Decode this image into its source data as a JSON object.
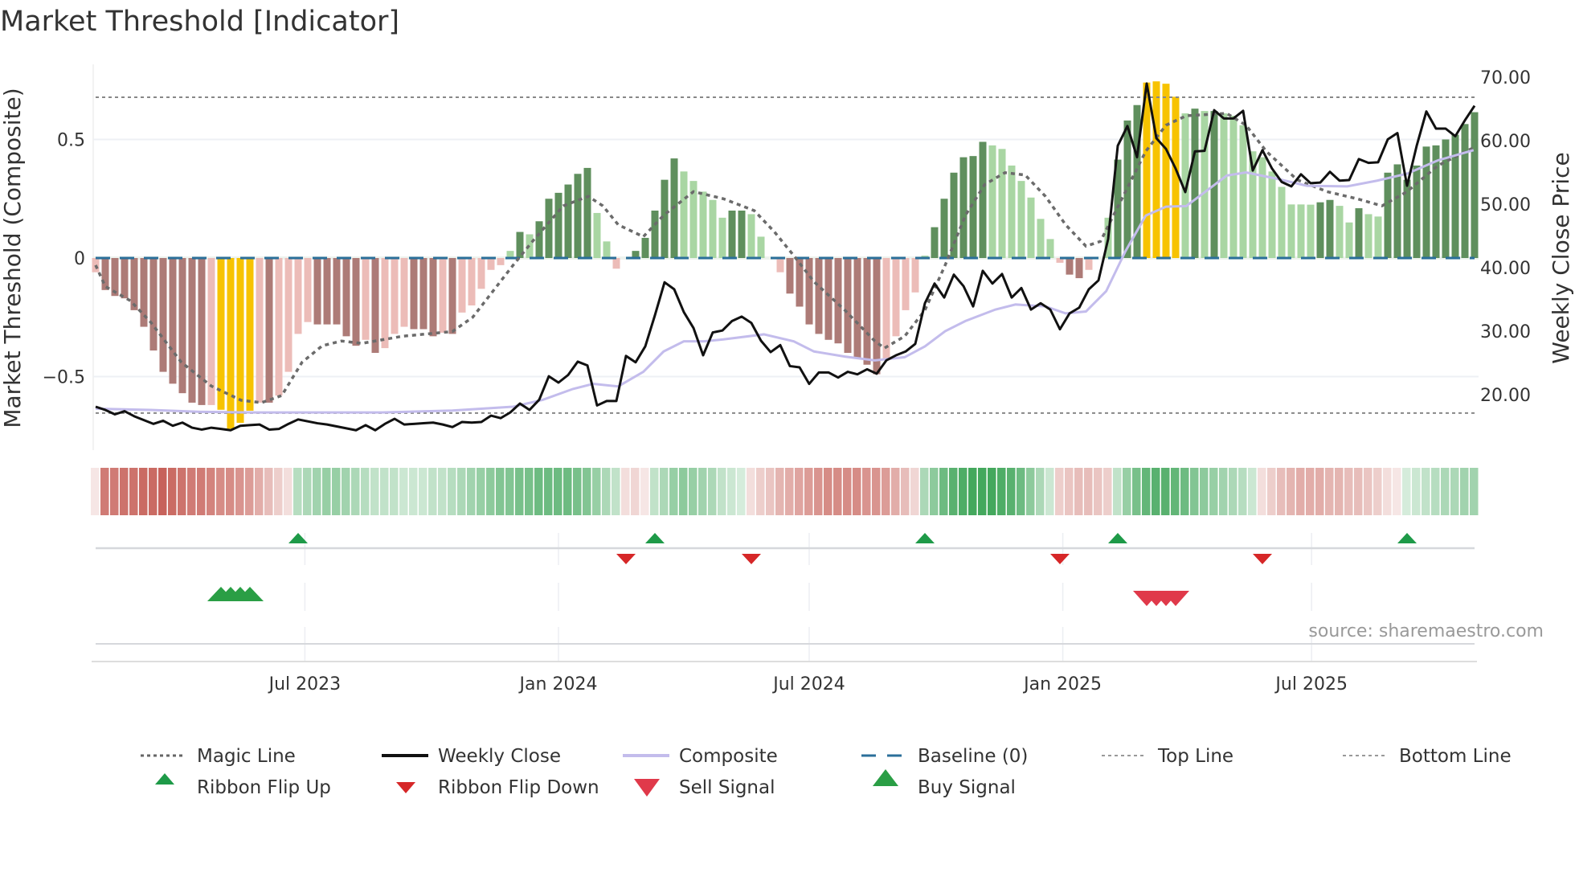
{
  "chart_data": {
    "type": "bar",
    "title": "Market Threshold [Indicator]",
    "ylabel_left": "Market Threshold (Composite)",
    "ylabel_right": "Weekly Close Price",
    "source": "source: sharemaestro.com",
    "x_unit": "week index",
    "ylim_left": [
      -0.8,
      0.8
    ],
    "ylim_right": [
      10,
      75
    ],
    "left_ticks": [
      {
        "value": 0.5,
        "label": "0.5"
      },
      {
        "value": 0,
        "label": "0"
      },
      {
        "value": -0.5,
        "label": "−0.5"
      }
    ],
    "right_ticks": [
      {
        "value": 70,
        "label": "70.00"
      },
      {
        "value": 60,
        "label": "60.00"
      },
      {
        "value": 50,
        "label": "50.00"
      },
      {
        "value": 40,
        "label": "40.00"
      },
      {
        "value": 30,
        "label": "30.00"
      },
      {
        "value": 20,
        "label": "20.00"
      }
    ],
    "x_ticks": [
      {
        "week": 21.7,
        "label": "Jul 2023"
      },
      {
        "week": 48.0,
        "label": "Jan 2024"
      },
      {
        "week": 74.0,
        "label": "Jul 2024"
      },
      {
        "week": 100.3,
        "label": "Jan 2025"
      },
      {
        "week": 126.1,
        "label": "Jul 2025"
      }
    ],
    "top_line": 0.678,
    "bottom_line": -0.654,
    "baseline": 0,
    "colors": {
      "D+": "#5f8f5d",
      "L+": "#a9d6a3",
      "D-": "#ad7b77",
      "L-": "#ecbcb8",
      "Y": "#f7c300",
      "magic": "#6b6b6b",
      "close": "#111111",
      "composite": "#c3bcec",
      "baseline": "#2b6f9a",
      "ribbon_red": "#c45a52",
      "ribbon_green": "#2f9e4b",
      "flip_up": "#1e9a48",
      "flip_down": "#d62728",
      "sell": "#e0394a",
      "buy": "#2a9e45"
    },
    "composite_bars": [
      -0.06,
      -0.135,
      -0.16,
      -0.17,
      -0.22,
      -0.29,
      -0.39,
      -0.48,
      -0.53,
      -0.57,
      -0.61,
      -0.62,
      -0.62,
      -0.64,
      -0.72,
      -0.695,
      -0.644,
      -0.61,
      -0.61,
      -0.58,
      -0.48,
      -0.32,
      -0.27,
      -0.28,
      -0.28,
      -0.28,
      -0.33,
      -0.37,
      -0.345,
      -0.4,
      -0.38,
      -0.32,
      -0.29,
      -0.3,
      -0.3,
      -0.33,
      -0.315,
      -0.32,
      -0.23,
      -0.2,
      -0.13,
      -0.05,
      -0.03,
      0.03,
      0.11,
      0.1,
      0.155,
      0.25,
      0.275,
      0.31,
      0.355,
      0.38,
      0.19,
      0.07,
      -0.045,
      0,
      0.03,
      0.085,
      0.2,
      0.33,
      0.42,
      0.365,
      0.325,
      0.28,
      0.245,
      0.17,
      0.2,
      0.2,
      0.185,
      0.09,
      0,
      -0.06,
      -0.15,
      -0.205,
      -0.28,
      -0.32,
      -0.345,
      -0.36,
      -0.4,
      -0.425,
      -0.45,
      -0.49,
      -0.43,
      -0.33,
      -0.22,
      -0.145,
      0.01,
      0.13,
      0.25,
      0.36,
      0.425,
      0.43,
      0.49,
      0.475,
      0.46,
      0.39,
      0.325,
      0.255,
      0.165,
      0.08,
      -0.02,
      -0.07,
      -0.085,
      -0.05,
      0,
      0.17,
      0.415,
      0.58,
      0.645,
      0.74,
      0.745,
      0.735,
      0.68,
      0.61,
      0.63,
      0.62,
      0.62,
      0.61,
      0.6,
      0.56,
      0.45,
      0.425,
      0.365,
      0.3,
      0.226,
      0.226,
      0.225,
      0.235,
      0.245,
      0.22,
      0.15,
      0.21,
      0.185,
      0.175,
      0.36,
      0.395,
      0.33,
      0.39,
      0.47,
      0.475,
      0.5,
      0.52,
      0.565,
      0.615
    ],
    "bar_states": [
      "L-",
      "D-",
      "D-",
      "D-",
      "D-",
      "D-",
      "D-",
      "D-",
      "D-",
      "D-",
      "D-",
      "D-",
      "L-",
      "Y",
      "Y",
      "Y",
      "Y",
      "L-",
      "D-",
      "L-",
      "L-",
      "L-",
      "L-",
      "D-",
      "D-",
      "D-",
      "D-",
      "D-",
      "L-",
      "D-",
      "L-",
      "L-",
      "L-",
      "D-",
      "D-",
      "D-",
      "L-",
      "D-",
      "L-",
      "L-",
      "L-",
      "L-",
      "L-",
      "L+",
      "D+",
      "L+",
      "D+",
      "D+",
      "D+",
      "D+",
      "D+",
      "D+",
      "L+",
      "L+",
      "L-",
      "L+",
      "D+",
      "D+",
      "D+",
      "D+",
      "D+",
      "L+",
      "L+",
      "L+",
      "L+",
      "L+",
      "D+",
      "D+",
      "L+",
      "L+",
      "L+",
      "L-",
      "D-",
      "D-",
      "D-",
      "D-",
      "D-",
      "D-",
      "D-",
      "D-",
      "D-",
      "D-",
      "L-",
      "L-",
      "L-",
      "L-",
      "L+",
      "D+",
      "D+",
      "D+",
      "D+",
      "D+",
      "D+",
      "L+",
      "L+",
      "L+",
      "L+",
      "L+",
      "L+",
      "L+",
      "L-",
      "D-",
      "D-",
      "L-",
      "L-",
      "L+",
      "D+",
      "D+",
      "D+",
      "Y",
      "Y",
      "Y",
      "Y",
      "L+",
      "D+",
      "L+",
      "D+",
      "L+",
      "L+",
      "L+",
      "L+",
      "L+",
      "L+",
      "L+",
      "L+",
      "L+",
      "L+",
      "D+",
      "D+",
      "L+",
      "L+",
      "D+",
      "L+",
      "L+",
      "D+",
      "D+",
      "D+",
      "D+",
      "D+",
      "D+",
      "D+",
      "D+",
      "D+",
      "D+"
    ],
    "weekly_close": [
      18.1,
      17.6,
      16.9,
      17.4,
      16.6,
      16.0,
      15.4,
      15.9,
      15.1,
      15.6,
      14.8,
      14.5,
      14.8,
      14.6,
      14.4,
      15.1,
      15.2,
      15.3,
      14.5,
      14.6,
      15.4,
      16.1,
      15.8,
      15.5,
      15.3,
      15.0,
      14.7,
      14.4,
      15.2,
      14.4,
      15.4,
      16.2,
      15.3,
      15.4,
      15.5,
      15.6,
      15.3,
      14.9,
      15.7,
      15.6,
      15.7,
      16.7,
      16.3,
      17.2,
      18.6,
      17.6,
      19.2,
      22.9,
      21.9,
      23.1,
      25.2,
      24.6,
      18.3,
      19.0,
      19.0,
      26.1,
      25.1,
      27.6,
      32.5,
      37.7,
      36.6,
      33.0,
      30.5,
      26.2,
      29.8,
      30.1,
      31.6,
      32.3,
      31.3,
      28.5,
      26.7,
      27.8,
      24.5,
      24.3,
      21.7,
      23.5,
      23.5,
      22.7,
      23.6,
      23.2,
      24.0,
      23.3,
      25.4,
      26.2,
      26.8,
      28.0,
      34.4,
      37.5,
      35.3,
      38.9,
      37.1,
      33.9,
      39.5,
      37.5,
      39.0,
      35.3,
      36.8,
      33.4,
      34.4,
      33.4,
      30.3,
      32.8,
      33.7,
      36.6,
      38.0,
      44.5,
      59.2,
      62.3,
      57.4,
      69.0,
      60.4,
      58.7,
      55.6,
      51.9,
      58.3,
      58.4,
      64.8,
      63.5,
      63.5,
      64.7,
      55.3,
      58.5,
      55.6,
      53.5,
      52.8,
      54.7,
      53.3,
      53.4,
      55.1,
      53.7,
      53.8,
      57.1,
      56.5,
      56.6,
      60.2,
      61.2,
      52.9,
      59.2,
      64.6,
      61.9,
      61.9,
      60.7,
      63.2,
      65.5
    ],
    "magic_line": [
      [
        0,
        -0.03
      ],
      [
        1,
        -0.12
      ],
      [
        3.6,
        -0.18
      ],
      [
        5.7,
        -0.27
      ],
      [
        8.9,
        -0.44
      ],
      [
        12,
        -0.54
      ],
      [
        15.1,
        -0.6
      ],
      [
        17.2,
        -0.61
      ],
      [
        19.3,
        -0.58
      ],
      [
        21.4,
        -0.44
      ],
      [
        23.5,
        -0.37
      ],
      [
        25.5,
        -0.35
      ],
      [
        27.6,
        -0.36
      ],
      [
        31.8,
        -0.33
      ],
      [
        37,
        -0.31
      ],
      [
        39.1,
        -0.25
      ],
      [
        41.2,
        -0.14
      ],
      [
        43.3,
        -0.03
      ],
      [
        45.3,
        0.07
      ],
      [
        48.5,
        0.22
      ],
      [
        51.1,
        0.26
      ],
      [
        52.6,
        0.22
      ],
      [
        54.2,
        0.14
      ],
      [
        56.8,
        0.09
      ],
      [
        58.9,
        0.18
      ],
      [
        62,
        0.28
      ],
      [
        65.1,
        0.25
      ],
      [
        68.3,
        0.2
      ],
      [
        70.4,
        0.11
      ],
      [
        72.4,
        0.01
      ],
      [
        74.5,
        -0.1
      ],
      [
        77.7,
        -0.22
      ],
      [
        80.8,
        -0.35
      ],
      [
        81.8,
        -0.38
      ],
      [
        83.9,
        -0.33
      ],
      [
        86,
        -0.22
      ],
      [
        88.1,
        -0.03
      ],
      [
        90.2,
        0.18
      ],
      [
        92.2,
        0.31
      ],
      [
        94.3,
        0.36
      ],
      [
        96.4,
        0.35
      ],
      [
        98.5,
        0.26
      ],
      [
        100.6,
        0.14
      ],
      [
        102.7,
        0.05
      ],
      [
        104.2,
        0.07
      ],
      [
        106.3,
        0.24
      ],
      [
        108.9,
        0.45
      ],
      [
        111,
        0.56
      ],
      [
        113.1,
        0.6
      ],
      [
        117.3,
        0.61
      ],
      [
        119.3,
        0.56
      ],
      [
        121.4,
        0.45
      ],
      [
        124.6,
        0.33
      ],
      [
        127.7,
        0.28
      ],
      [
        130.8,
        0.25
      ],
      [
        133.4,
        0.22
      ],
      [
        136,
        0.28
      ],
      [
        139.2,
        0.39
      ],
      [
        143.1,
        0.47
      ]
    ],
    "composite_line": [
      [
        0,
        17.8
      ],
      [
        5.7,
        17.6
      ],
      [
        10.9,
        17.3
      ],
      [
        16.2,
        17.2
      ],
      [
        21.4,
        17.2
      ],
      [
        29.7,
        17.2
      ],
      [
        37,
        17.5
      ],
      [
        43.3,
        18.1
      ],
      [
        46.4,
        19.2
      ],
      [
        49.5,
        20.9
      ],
      [
        51.6,
        21.7
      ],
      [
        54.2,
        21.3
      ],
      [
        56.8,
        23.6
      ],
      [
        58.9,
        26.8
      ],
      [
        61,
        28.4
      ],
      [
        63.1,
        28.4
      ],
      [
        65.1,
        28.7
      ],
      [
        69.3,
        29.5
      ],
      [
        72.4,
        28.4
      ],
      [
        74.5,
        26.8
      ],
      [
        77.7,
        26.0
      ],
      [
        80.8,
        25.4
      ],
      [
        83.9,
        25.9
      ],
      [
        86,
        27.6
      ],
      [
        88.1,
        30.0
      ],
      [
        90.2,
        31.6
      ],
      [
        93.3,
        33.4
      ],
      [
        95.4,
        34.2
      ],
      [
        98.5,
        33.9
      ],
      [
        100.6,
        32.8
      ],
      [
        102.7,
        33.1
      ],
      [
        104.8,
        36.3
      ],
      [
        106.8,
        42.6
      ],
      [
        108.9,
        48.2
      ],
      [
        111,
        49.6
      ],
      [
        113.1,
        49.7
      ],
      [
        115.2,
        52.1
      ],
      [
        117.3,
        54.5
      ],
      [
        119.3,
        55.0
      ],
      [
        122.5,
        54.0
      ],
      [
        125.6,
        52.9
      ],
      [
        129.8,
        52.8
      ],
      [
        132.9,
        53.7
      ],
      [
        136,
        54.8
      ],
      [
        139.2,
        56.9
      ],
      [
        142.9,
        58.5
      ]
    ],
    "ribbon": [
      -0.15,
      -0.8,
      -0.8,
      -0.85,
      -0.85,
      -0.9,
      -0.9,
      -0.95,
      -0.9,
      -0.85,
      -0.8,
      -0.8,
      -0.75,
      -0.7,
      -0.7,
      -0.65,
      -0.6,
      -0.5,
      -0.4,
      -0.3,
      -0.2,
      0.35,
      0.4,
      0.45,
      0.5,
      0.5,
      0.45,
      0.4,
      0.35,
      0.3,
      0.3,
      0.3,
      0.25,
      0.25,
      0.25,
      0.3,
      0.3,
      0.35,
      0.4,
      0.45,
      0.5,
      0.55,
      0.6,
      0.6,
      0.65,
      0.65,
      0.7,
      0.7,
      0.7,
      0.7,
      0.65,
      0.6,
      0.5,
      0.4,
      0.3,
      -0.2,
      -0.25,
      -0.15,
      0.3,
      0.4,
      0.5,
      0.55,
      0.5,
      0.45,
      0.4,
      0.3,
      0.25,
      0.2,
      -0.2,
      -0.3,
      -0.35,
      -0.45,
      -0.5,
      -0.55,
      -0.6,
      -0.65,
      -0.7,
      -0.7,
      -0.7,
      -0.7,
      -0.65,
      -0.65,
      -0.6,
      -0.5,
      -0.4,
      -0.25,
      0.4,
      0.55,
      0.7,
      0.8,
      0.85,
      0.9,
      0.9,
      0.9,
      0.85,
      0.8,
      0.7,
      0.55,
      0.4,
      0.25,
      -0.3,
      -0.35,
      -0.4,
      -0.4,
      -0.35,
      -0.3,
      0.3,
      0.5,
      0.65,
      0.75,
      0.8,
      0.8,
      0.75,
      0.7,
      0.6,
      0.55,
      0.5,
      0.45,
      0.4,
      0.35,
      0.25,
      -0.2,
      -0.3,
      -0.4,
      -0.45,
      -0.5,
      -0.5,
      -0.5,
      -0.45,
      -0.45,
      -0.4,
      -0.4,
      -0.35,
      -0.3,
      -0.2,
      -0.15,
      0.2,
      0.25,
      0.3,
      0.35,
      0.4,
      0.4,
      0.45,
      0.45
    ],
    "ribbon_flip_up": [
      21,
      58,
      86,
      106,
      136
    ],
    "ribbon_flip_down": [
      55,
      68,
      100,
      121
    ],
    "buy_signals": [
      13,
      14,
      15,
      16
    ],
    "sell_signals": [
      109,
      110,
      111,
      112
    ],
    "legend": {
      "position": "bottom",
      "items": [
        {
          "label": "Magic Line",
          "symbol": "dotted-line"
        },
        {
          "label": "Weekly Close",
          "symbol": "solid-line"
        },
        {
          "label": "Composite",
          "symbol": "lavender-line"
        },
        {
          "label": "Baseline (0)",
          "symbol": "dashed-line"
        },
        {
          "label": "Top Line",
          "symbol": "dotted-line"
        },
        {
          "label": "Bottom Line",
          "symbol": "dotted-line"
        },
        {
          "label": "Ribbon Flip Up",
          "symbol": "triangle-up-small"
        },
        {
          "label": "Ribbon Flip Down",
          "symbol": "triangle-down-small"
        },
        {
          "label": "Sell Signal",
          "symbol": "triangle-down"
        },
        {
          "label": "Buy Signal",
          "symbol": "triangle-up"
        }
      ]
    }
  }
}
